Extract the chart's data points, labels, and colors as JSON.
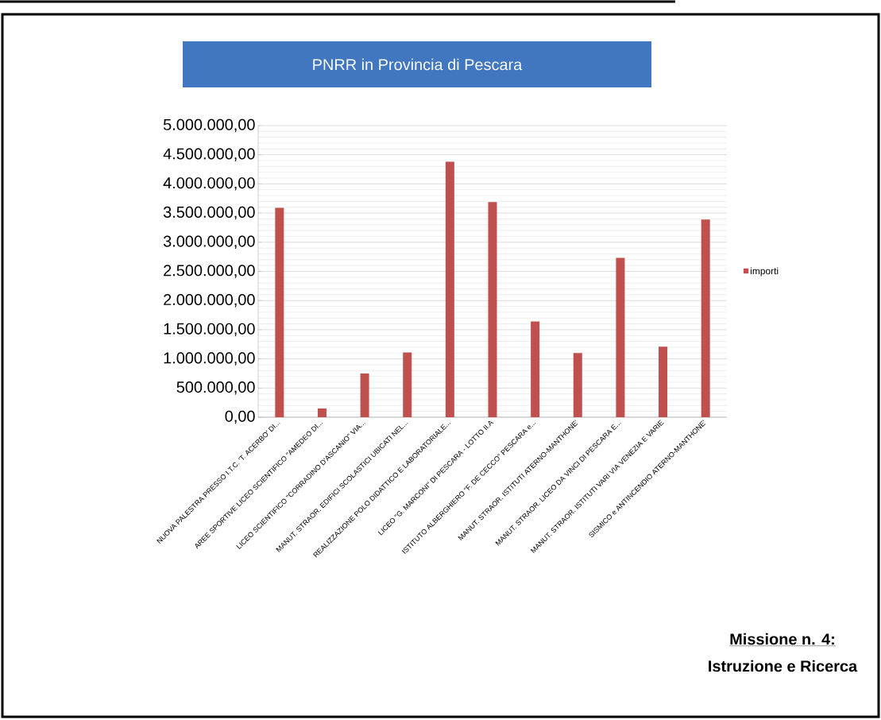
{
  "chart_data": {
    "type": "bar",
    "title": "PNRR in Provincia di Pescara",
    "categories": [
      "NUOVA PALESTRA PRESSO I.T.C. 'T. ACERBO' DI...",
      "AREE SPORTIVE LICEO SCIENTIFICO \"AMEDEO DI...",
      "LICEO SCIENTIFICO \"CORRADINO D'ASCANIO\" VIA...",
      "MANUT. STRAOR. EDIFICI SCOLASTICI UBICATI NEL...",
      "REALIZZAZIONE POLO DIDATTICO E LABORATORIALE...",
      "LICEO \"G. MARCONI\" DI PESCARA - LOTTO II.A",
      "ISTITUTO ALBERGHIERO \"F. DE CECCO\" PESCARA e...",
      "MANUT. STRAOR. ISTITUTI ATERNO-MANTHONE'",
      "MANUT. STRAOR. LICEO DA VINCI DI PESCARA E...",
      "MANUT. STRAOR. ISTITUTI VARI VIA VENEZIA E VARIE",
      "SISMICO e ANTINCENDIO ATERNO-MANTHONE'"
    ],
    "series": [
      {
        "name": "importi",
        "color": "#c0504d",
        "values": [
          3590000,
          150000,
          750000,
          1110000,
          4380000,
          3690000,
          1640000,
          1100000,
          2730000,
          1210000,
          3390000
        ]
      }
    ],
    "ylim": [
      0,
      5000000
    ],
    "yticks": [
      {
        "value": 0,
        "label": "0,00"
      },
      {
        "value": 500000,
        "label": "500.000,00"
      },
      {
        "value": 1000000,
        "label": "1.000.000,00"
      },
      {
        "value": 1500000,
        "label": "1.500.000,00"
      },
      {
        "value": 2000000,
        "label": "2.000.000,00"
      },
      {
        "value": 2500000,
        "label": "2.500.000,00"
      },
      {
        "value": 3000000,
        "label": "3.000.000,00"
      },
      {
        "value": 3500000,
        "label": "3.500.000,00"
      },
      {
        "value": 4000000,
        "label": "4.000.000,00"
      },
      {
        "value": 4500000,
        "label": "4.500.000,00"
      },
      {
        "value": 5000000,
        "label": "5.000.000,00"
      }
    ],
    "grid": "y",
    "legend": "right",
    "annotations": [
      "Missione n. 4:",
      "Istruzione e Ricerca"
    ]
  }
}
